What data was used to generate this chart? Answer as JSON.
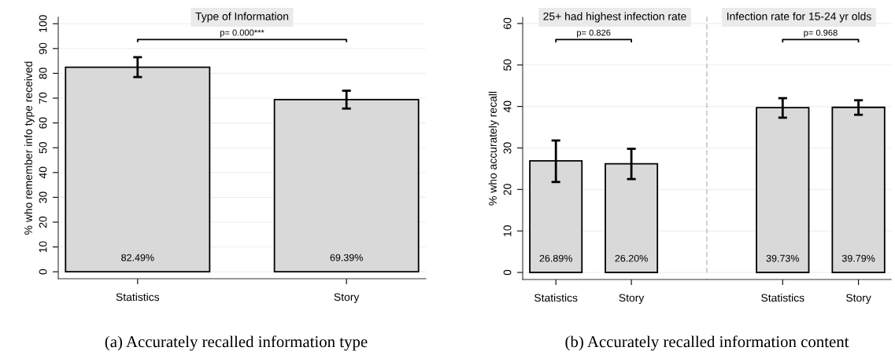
{
  "chart_data": [
    {
      "type": "bar",
      "title": "Type of Information",
      "ylabel": "% who remember info type received",
      "categories": [
        "Statistics",
        "Story"
      ],
      "values": [
        82.49,
        69.39
      ],
      "color": "#d9d9d9",
      "errors": [
        [
          78.5,
          86.5
        ],
        [
          65.8,
          73.0
        ]
      ],
      "value_labels": [
        "82.49%",
        "69.39%"
      ],
      "ylim": [
        -2.8,
        102.6
      ],
      "yticks": [
        0,
        10,
        20,
        30,
        40,
        50,
        60,
        70,
        80,
        90,
        100
      ],
      "grid": "y",
      "annotations": [
        "p= 0.000***",
        "(a) Accurately recalled information type"
      ]
    },
    {
      "type": "bar",
      "title": "25+ had highest infection rate",
      "ylabel": "% who accurately recall",
      "categories": [
        "Statistics",
        "Story"
      ],
      "values": [
        26.89,
        26.2
      ],
      "color": "#d9d9d9",
      "errors": [
        [
          21.8,
          31.8
        ],
        [
          22.5,
          29.8
        ]
      ],
      "value_labels": [
        "26.89%",
        "26.20%"
      ],
      "ylim": [
        -1.7,
        61.5
      ],
      "yticks": [
        0,
        10,
        20,
        30,
        40,
        50,
        60
      ],
      "grid": "y",
      "annotations": [
        "p= 0.826",
        "(b) Accurately recalled information content"
      ]
    },
    {
      "type": "bar",
      "title": "Infection rate for 15-24 yr olds",
      "categories": [
        "Statistics",
        "Story"
      ],
      "values": [
        39.73,
        39.79
      ],
      "color": "#d9d9d9",
      "errors": [
        [
          37.3,
          42.0
        ],
        [
          38.0,
          41.5
        ]
      ],
      "value_labels": [
        "39.73%",
        "39.79%"
      ],
      "ylim": [
        -1.7,
        61.5
      ],
      "yticks": [
        0,
        10,
        20,
        30,
        40,
        50,
        60
      ],
      "grid": "y",
      "tick_labels": "x",
      "annotations": [
        "p= 0.968"
      ]
    }
  ]
}
